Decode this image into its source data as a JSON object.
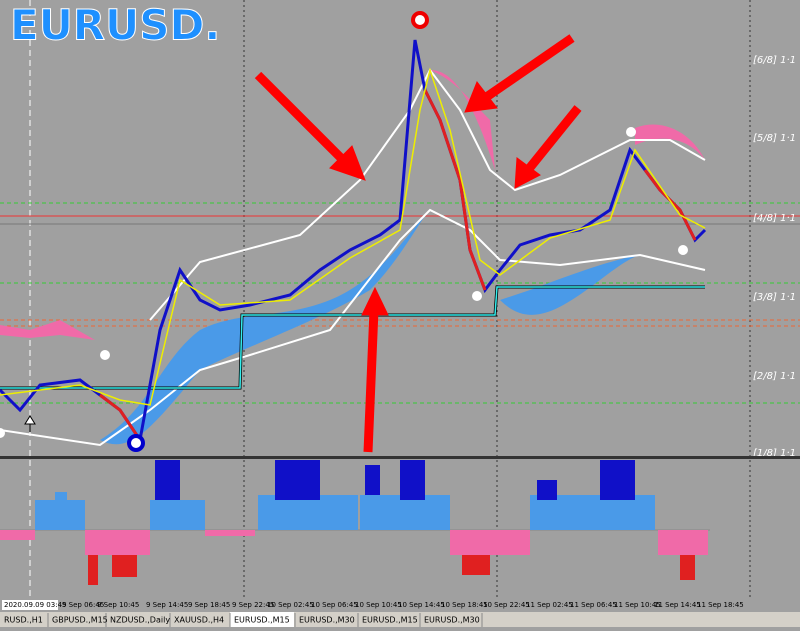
{
  "header": {
    "title": "EURUSD."
  },
  "price_levels": [
    "[6/8] 1·1",
    "[5/8] 1·1",
    "[4/8] 1·1",
    "[3/8] 1·1",
    "[2/8] 1·1",
    "[1/8] 1·1"
  ],
  "time_axis": [
    "2020.09.09 03:45",
    "9 Sep 06:45",
    "9 Sep 10:45",
    "9 Sep 14:45",
    "9 Sep 18:45",
    "9 Sep 22:45",
    "10 Sep 02:45",
    "10 Sep 06:45",
    "10 Sep 10:45",
    "10 Sep 14:45",
    "10 Sep 18:45",
    "10 Sep 22:45",
    "11 Sep 02:45",
    "11 Sep 06:45",
    "11 Sep 10:45",
    "11 Sep 14:45",
    "11 Sep 18:45"
  ],
  "tabs": [
    "RUSD.,H1",
    "GBPUSD.,M15",
    "NZDUSD.,Daily",
    "XAUUSD.,H4",
    "EURUSD.,M15",
    "EURUSD.,M30",
    "EURUSD.,M15",
    "EURUSD.,M30"
  ]
}
